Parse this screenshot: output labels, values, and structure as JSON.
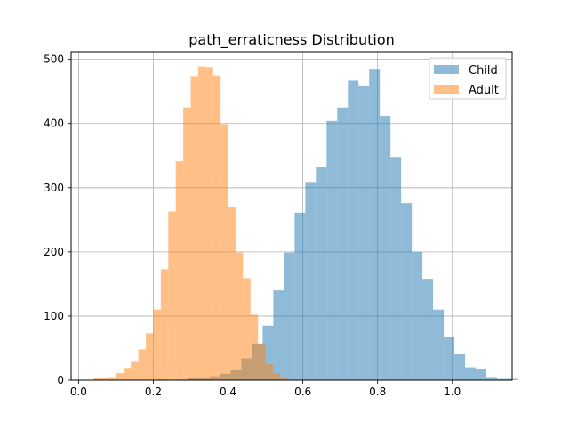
{
  "chart_data": {
    "type": "bar",
    "title": "path_erraticness Distribution",
    "xlabel": "",
    "ylabel": "",
    "xlim": [
      -0.02,
      1.16
    ],
    "ylim": [
      0,
      512
    ],
    "x_ticks": [
      0.0,
      0.2,
      0.4,
      0.6,
      0.8,
      1.0
    ],
    "x_tick_labels": [
      "0.0",
      "0.2",
      "0.4",
      "0.6",
      "0.8",
      "1.0"
    ],
    "y_ticks": [
      0,
      100,
      200,
      300,
      400,
      500
    ],
    "y_tick_labels": [
      "0",
      "100",
      "200",
      "300",
      "400",
      "500"
    ],
    "grid": true,
    "legend_position": "top-right",
    "series": [
      {
        "name": "Child",
        "color": "#1f77b4",
        "opacity": 0.5,
        "bin_start": 0.2075,
        "bin_width": 0.0285,
        "counts": [
          1,
          0,
          1,
          3,
          3,
          6,
          10,
          16,
          34,
          57,
          85,
          140,
          199,
          261,
          309,
          332,
          404,
          425,
          467,
          458,
          484,
          412,
          348,
          276,
          200,
          158,
          110,
          67,
          41,
          20,
          18,
          5,
          2,
          2
        ]
      },
      {
        "name": "Adult",
        "color": "#ff7f0e",
        "opacity": 0.5,
        "bin_start": 0.04,
        "bin_width": 0.02,
        "counts": [
          3,
          3,
          5,
          11,
          19,
          30,
          48,
          73,
          110,
          173,
          263,
          341,
          425,
          474,
          489,
          488,
          475,
          399,
          270,
          199,
          159,
          102,
          57,
          25,
          11,
          3
        ]
      }
    ]
  }
}
